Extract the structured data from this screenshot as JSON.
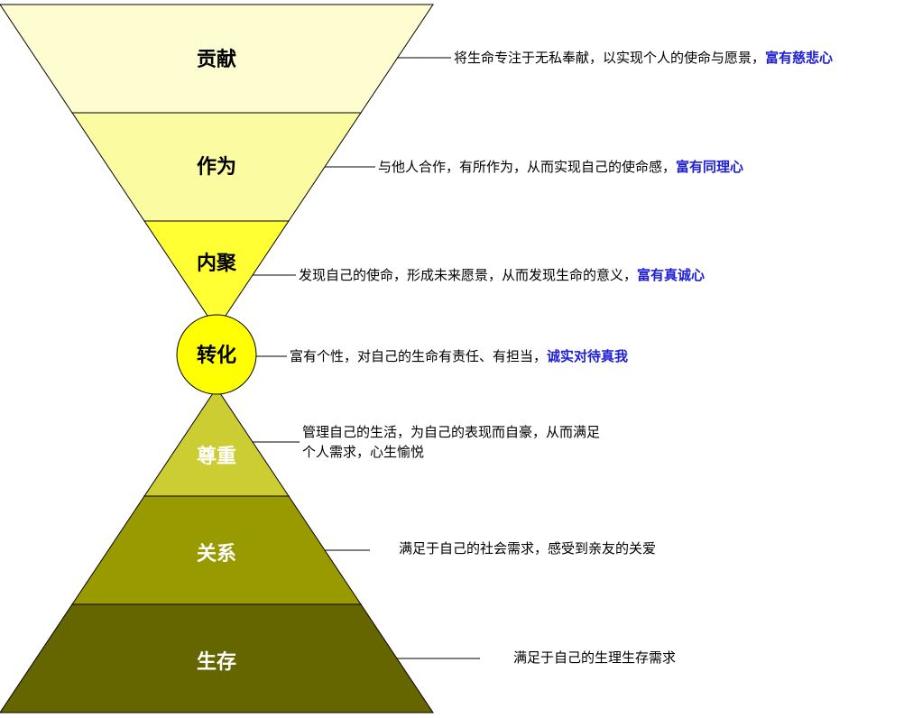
{
  "colors": {
    "stroke": "#000000",
    "top_level_1": "#fdfdd1",
    "top_level_2": "#fbfba2",
    "top_level_3": "#ffff33",
    "center_circle": "#ffff00",
    "bottom_level_1": "#cccc33",
    "bottom_level_2": "#999900",
    "bottom_level_3": "#666600",
    "highlight": "#1f1fd6",
    "label_dark": "#000000",
    "label_light": "#ffffff"
  },
  "levels": {
    "contribution": {
      "label": "贡献",
      "desc": "将生命专注于无私奉献，以实现个人的使命与愿景，",
      "highlight": "富有慈悲心"
    },
    "action": {
      "label": "作为",
      "desc": "与他人合作，有所作为，从而实现自己的使命感，",
      "highlight": "富有同理心"
    },
    "focus": {
      "label": "内聚",
      "desc": "发现自己的使命，形成未来愿景，从而发现生命的意义，",
      "highlight": "富有真诚心"
    },
    "transformation": {
      "label": "转化",
      "desc": "富有个性，对自己的生命有责任、有担当，",
      "highlight": "诚实对待真我"
    },
    "esteem": {
      "label": "尊重",
      "desc_line1": "管理自己的生活，为自己的表现而自豪，从而满足",
      "desc_line2": "个人需求，心生愉悦"
    },
    "relationship": {
      "label": "关系",
      "desc": "满足于自己的社会需求，感受到亲友的关爱"
    },
    "survival": {
      "label": "生存",
      "desc": "满足于自己的生理生存需求"
    }
  }
}
